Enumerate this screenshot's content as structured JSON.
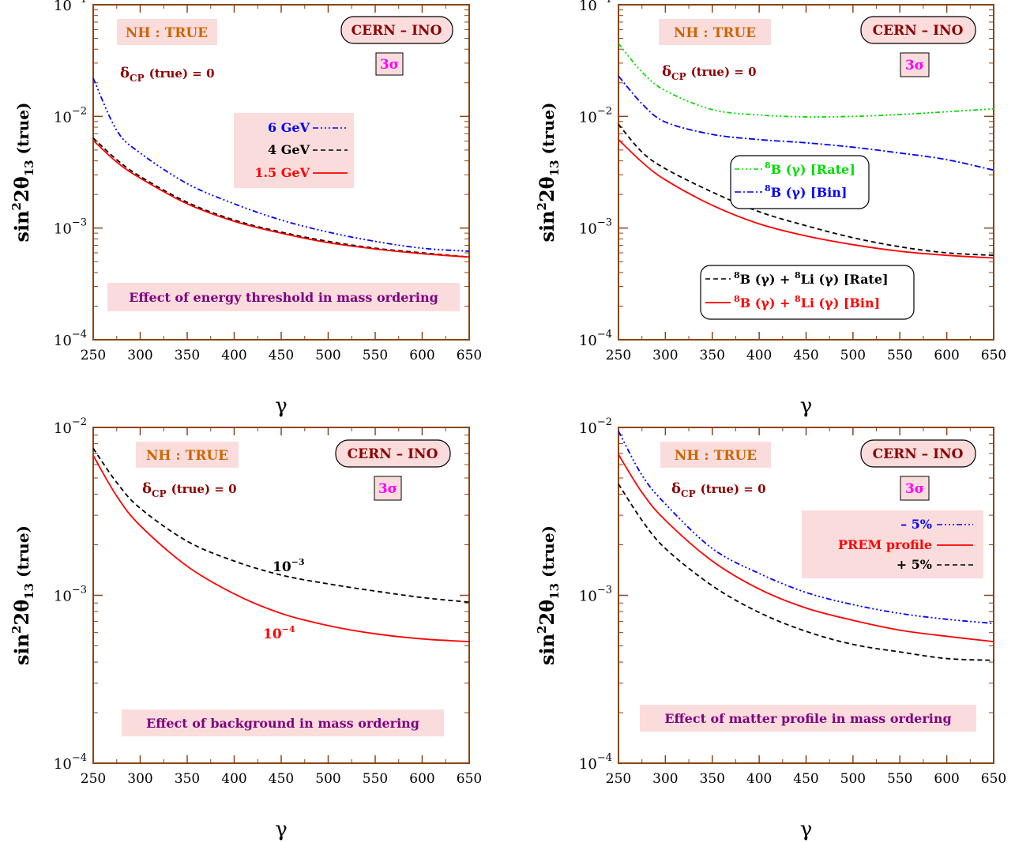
{
  "panel_labels": {
    "hierarchy": "NH : TRUE",
    "baseline": "CERN – INO",
    "cl": "3σ",
    "delta_main": "δ",
    "delta_sub": "CP",
    "delta_rest": "(true)  = 0"
  },
  "axes": {
    "xlabel": "γ",
    "ylabel_main": "sin",
    "ylabel_sup": "2",
    "ylabel_rest": "2θ",
    "ylabel_sub": "13",
    "ylabel_tail": "(true)",
    "x_ticks": [
      "250",
      "300",
      "350",
      "400",
      "450",
      "500",
      "550",
      "600",
      "650"
    ],
    "y_base": "10"
  },
  "notes": {
    "p1": "Effect of energy threshold in mass ordering",
    "p3": "Effect of background in mass ordering",
    "p4": "Effect of matter profile in mass ordering"
  },
  "legends": {
    "p1": [
      "6 GeV",
      "4 GeV",
      "1.5 GeV"
    ],
    "p2a_main": [
      "B (γ) [Rate]",
      "B (γ) [Bin]"
    ],
    "p2b_main": [
      "B (γ) + ",
      "Li (γ) [Rate]",
      "B (γ) + ",
      "Li (γ) [Bin]"
    ],
    "p2_sup": "8",
    "p3_base": [
      "10",
      "10"
    ],
    "p3_exp": [
      "−3",
      "−4"
    ],
    "p4": [
      "– 5%",
      "PREM profile",
      "+ 5%"
    ]
  },
  "colors": {
    "frame": "#8B4513",
    "red": "#ff0000",
    "blue": "#0000ff",
    "black": "#000000",
    "green": "#00dd00",
    "darkred": "#8B0000",
    "orange": "#cc6600",
    "purple": "#800080",
    "magenta": "#ff00ff",
    "pink_box": "#fbdcdc"
  },
  "chart_data": [
    {
      "type": "line",
      "xlabel": "γ",
      "ylabel": "sin²2θ₁₃ (true)",
      "xlim": [
        250,
        650
      ],
      "ylim": [
        0.0001,
        0.1
      ],
      "yscale": "log",
      "x": [
        250,
        275,
        300,
        350,
        400,
        450,
        500,
        550,
        600,
        650
      ],
      "series": [
        {
          "name": "6 GeV",
          "values": [
            0.022,
            0.0075,
            0.0047,
            0.0025,
            0.00165,
            0.00118,
            0.00092,
            0.00076,
            0.00066,
            0.00062
          ]
        },
        {
          "name": "4 GeV",
          "values": [
            0.0064,
            0.0041,
            0.0029,
            0.0017,
            0.00118,
            0.00092,
            0.00076,
            0.00066,
            0.0006,
            0.00055
          ]
        },
        {
          "name": "1.5 GeV",
          "values": [
            0.0061,
            0.0039,
            0.0028,
            0.00165,
            0.00115,
            0.0009,
            0.00074,
            0.00065,
            0.00059,
            0.00055
          ]
        }
      ]
    },
    {
      "type": "line",
      "xlabel": "γ",
      "ylabel": "sin²2θ₁₃ (true)",
      "xlim": [
        250,
        650
      ],
      "ylim": [
        0.0001,
        0.1
      ],
      "yscale": "log",
      "x": [
        250,
        275,
        300,
        350,
        400,
        450,
        500,
        550,
        600,
        650
      ],
      "series": [
        {
          "name": "8B (γ) [Rate]",
          "values": [
            0.045,
            0.025,
            0.017,
            0.0115,
            0.0103,
            0.0099,
            0.01,
            0.0104,
            0.011,
            0.0117
          ]
        },
        {
          "name": "8B (γ) [Bin]",
          "values": [
            0.023,
            0.013,
            0.0089,
            0.0069,
            0.0062,
            0.0058,
            0.0053,
            0.0047,
            0.0041,
            0.0033
          ]
        },
        {
          "name": "8B (γ) + 8Li (γ) [Rate]",
          "values": [
            0.0085,
            0.0048,
            0.0034,
            0.0021,
            0.0014,
            0.00105,
            0.00082,
            0.00068,
            0.0006,
            0.00057
          ]
        },
        {
          "name": "8B (γ) + 8Li (γ) [Bin]",
          "values": [
            0.0062,
            0.0039,
            0.0027,
            0.0016,
            0.00109,
            0.00085,
            0.00071,
            0.00062,
            0.00057,
            0.00054
          ]
        }
      ]
    },
    {
      "type": "line",
      "xlabel": "γ",
      "ylabel": "sin²2θ₁₃ (true)",
      "xlim": [
        250,
        650
      ],
      "ylim": [
        0.0001,
        0.01
      ],
      "yscale": "log",
      "x": [
        250,
        275,
        300,
        350,
        400,
        450,
        500,
        550,
        600,
        650
      ],
      "series": [
        {
          "name": "10⁻³",
          "values": [
            0.0075,
            0.0047,
            0.0033,
            0.0021,
            0.0016,
            0.00132,
            0.00117,
            0.00106,
            0.00097,
            0.00091
          ]
        },
        {
          "name": "10⁻⁴",
          "values": [
            0.0068,
            0.0039,
            0.0026,
            0.00149,
            0.00102,
            0.00078,
            0.00066,
            0.00059,
            0.00055,
            0.00053
          ]
        }
      ]
    },
    {
      "type": "line",
      "xlabel": "γ",
      "ylabel": "sin²2θ₁₃ (true)",
      "xlim": [
        250,
        650
      ],
      "ylim": [
        0.0001,
        0.01
      ],
      "yscale": "log",
      "x": [
        250,
        275,
        300,
        350,
        400,
        450,
        500,
        550,
        600,
        650
      ],
      "series": [
        {
          "name": "– 5%",
          "values": [
            0.0095,
            0.0052,
            0.0035,
            0.0019,
            0.00135,
            0.00104,
            0.00088,
            0.00078,
            0.00072,
            0.00068
          ]
        },
        {
          "name": "PREM profile",
          "values": [
            0.0069,
            0.0041,
            0.0028,
            0.0016,
            0.00109,
            0.00084,
            0.00071,
            0.00062,
            0.00057,
            0.00053
          ]
        },
        {
          "name": "+ 5%",
          "values": [
            0.0046,
            0.0028,
            0.0019,
            0.00114,
            0.00079,
            0.00061,
            0.00051,
            0.00046,
            0.00042,
            0.00041
          ]
        }
      ]
    }
  ]
}
